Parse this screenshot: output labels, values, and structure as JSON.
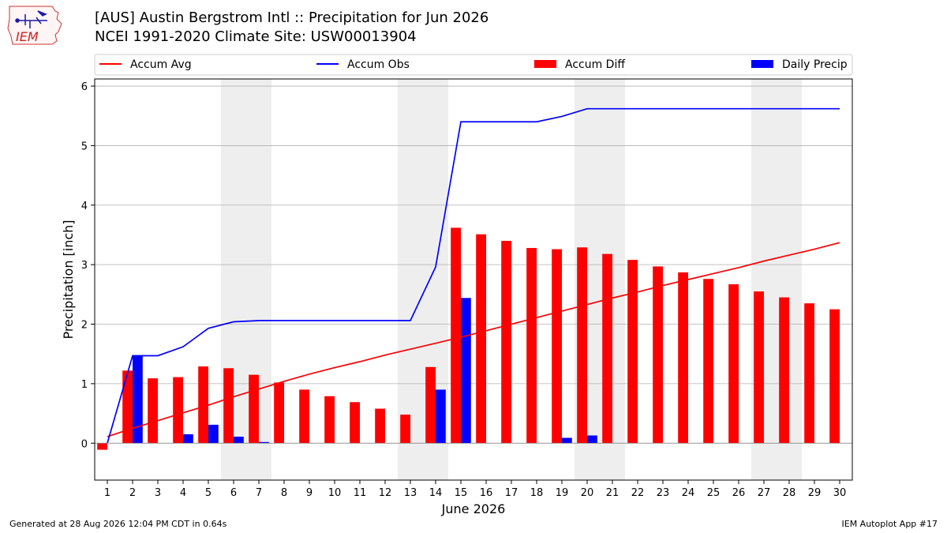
{
  "header": {
    "title_line1": "[AUS] Austin Bergstrom Intl :: Precipitation for Jun 2026",
    "title_line2": "NCEI 1991-2020 Climate Site: USW00013904"
  },
  "logo": {
    "text": "IEM",
    "icon": "iem-iowa-logo"
  },
  "footer": {
    "left": "Generated at 28 Aug 2026 12:04 PM CDT in 0.64s",
    "right": "IEM Autoplot App #17"
  },
  "colors": {
    "avg": "#ff0000",
    "obs": "#0000ff",
    "diff": "#ff0000",
    "daily": "#0000ff",
    "weekend": "#eeeeee",
    "grid": "#b0b0b0"
  },
  "chart_data": {
    "type": "bar",
    "xlabel": "June 2026",
    "ylabel": "Precipitation [inch]",
    "ylim": [
      -0.62,
      6.12
    ],
    "yticks": [
      0,
      1,
      2,
      3,
      4,
      5,
      6
    ],
    "xlim": [
      0.5,
      30.5
    ],
    "x": [
      1,
      2,
      3,
      4,
      5,
      6,
      7,
      8,
      9,
      10,
      11,
      12,
      13,
      14,
      15,
      16,
      17,
      18,
      19,
      20,
      21,
      22,
      23,
      24,
      25,
      26,
      27,
      28,
      29,
      30
    ],
    "legend_position": "top",
    "grid": "horizontal",
    "weekend_shading": [
      [
        5.5,
        7.5
      ],
      [
        12.5,
        14.5
      ],
      [
        19.5,
        21.5
      ],
      [
        26.5,
        28.5
      ]
    ],
    "series": [
      {
        "name": "Accum Avg",
        "kind": "line",
        "values": [
          0.11,
          0.25,
          0.38,
          0.51,
          0.64,
          0.78,
          0.91,
          1.04,
          1.16,
          1.27,
          1.37,
          1.48,
          1.58,
          1.68,
          1.78,
          1.89,
          2.0,
          2.11,
          2.22,
          2.33,
          2.44,
          2.54,
          2.65,
          2.75,
          2.85,
          2.95,
          3.06,
          3.16,
          3.26,
          3.37
        ]
      },
      {
        "name": "Accum Obs",
        "kind": "line",
        "values": [
          0.0,
          1.47,
          1.47,
          1.62,
          1.93,
          2.04,
          2.06,
          2.06,
          2.06,
          2.06,
          2.06,
          2.06,
          2.06,
          2.96,
          5.4,
          5.4,
          5.4,
          5.4,
          5.49,
          5.62,
          5.62,
          5.62,
          5.62,
          5.62,
          5.62,
          5.62,
          5.62,
          5.62,
          5.62,
          5.62
        ]
      },
      {
        "name": "Accum Diff",
        "kind": "bar",
        "values": [
          -0.11,
          1.22,
          1.09,
          1.11,
          1.29,
          1.26,
          1.15,
          1.02,
          0.9,
          0.79,
          0.69,
          0.58,
          0.48,
          1.28,
          3.62,
          3.51,
          3.4,
          3.28,
          3.26,
          3.29,
          3.18,
          3.08,
          2.97,
          2.87,
          2.76,
          2.67,
          2.55,
          2.45,
          2.35,
          2.25
        ]
      },
      {
        "name": "Daily Precip",
        "kind": "bar",
        "values": [
          0.0,
          1.47,
          0.0,
          0.15,
          0.31,
          0.11,
          0.02,
          0.0,
          0.0,
          0.0,
          0.0,
          0.0,
          0.0,
          0.9,
          2.44,
          0.0,
          0.0,
          0.0,
          0.09,
          0.13,
          0.0,
          0.0,
          0.0,
          0.0,
          0.0,
          0.0,
          0.0,
          0.0,
          0.0,
          0.0
        ]
      }
    ]
  }
}
